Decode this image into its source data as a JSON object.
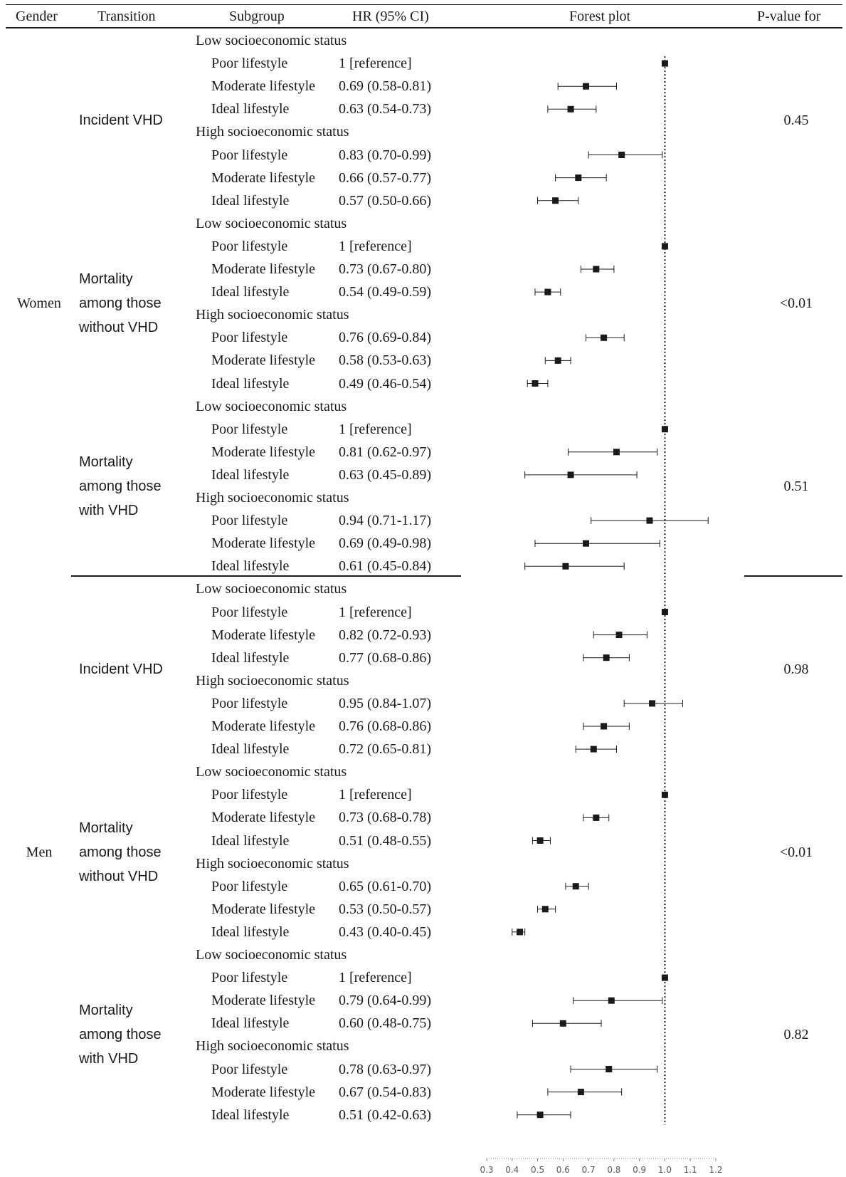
{
  "headers": {
    "gender": "Gender",
    "transition": "Transition",
    "subgroup": "Subgroup",
    "hr": "HR (95% CI)",
    "plot": "Forest plot",
    "pvalue": "P-value for"
  },
  "colors": {
    "ink": "#1a1a1a",
    "axis": "#888888"
  },
  "chart_data": {
    "type": "forest",
    "xaxis": {
      "range": [
        0.3,
        1.2
      ],
      "ticks": [
        "0.3",
        "0.4",
        "0.5",
        "0.6",
        "0.7",
        "0.8",
        "0.9",
        "1.0",
        "1.1",
        "1.2"
      ],
      "reference_line": 1.0,
      "reference_style": "dotted"
    },
    "genders": [
      {
        "label": "Women",
        "transitions": [
          {
            "label_lines": [
              "Incident VHD"
            ],
            "p_value": "0.45",
            "groups": [
              {
                "label": "Low socioeconomic status",
                "rows": [
                  {
                    "subgroup": "Poor lifestyle",
                    "hr_text": "1 [reference]",
                    "hr": 1.0,
                    "lo": 1.0,
                    "hi": 1.0
                  },
                  {
                    "subgroup": "Moderate lifestyle",
                    "hr_text": "0.69 (0.58-0.81)",
                    "hr": 0.69,
                    "lo": 0.58,
                    "hi": 0.81
                  },
                  {
                    "subgroup": "Ideal lifestyle",
                    "hr_text": "0.63 (0.54-0.73)",
                    "hr": 0.63,
                    "lo": 0.54,
                    "hi": 0.73
                  }
                ]
              },
              {
                "label": "High socioeconomic status",
                "rows": [
                  {
                    "subgroup": "Poor lifestyle",
                    "hr_text": "0.83 (0.70-0.99)",
                    "hr": 0.83,
                    "lo": 0.7,
                    "hi": 0.99
                  },
                  {
                    "subgroup": "Moderate lifestyle",
                    "hr_text": "0.66 (0.57-0.77)",
                    "hr": 0.66,
                    "lo": 0.57,
                    "hi": 0.77
                  },
                  {
                    "subgroup": "Ideal lifestyle",
                    "hr_text": "0.57 (0.50-0.66)",
                    "hr": 0.57,
                    "lo": 0.5,
                    "hi": 0.66
                  }
                ]
              }
            ]
          },
          {
            "label_lines": [
              "Mortality",
              "among those",
              "without VHD"
            ],
            "p_value": "<0.01",
            "groups": [
              {
                "label": "Low socioeconomic status",
                "rows": [
                  {
                    "subgroup": "Poor lifestyle",
                    "hr_text": "1 [reference]",
                    "hr": 1.0,
                    "lo": 1.0,
                    "hi": 1.0
                  },
                  {
                    "subgroup": "Moderate lifestyle",
                    "hr_text": "0.73 (0.67-0.80)",
                    "hr": 0.73,
                    "lo": 0.67,
                    "hi": 0.8
                  },
                  {
                    "subgroup": "Ideal lifestyle",
                    "hr_text": "0.54 (0.49-0.59)",
                    "hr": 0.54,
                    "lo": 0.49,
                    "hi": 0.59
                  }
                ]
              },
              {
                "label": "High socioeconomic status",
                "rows": [
                  {
                    "subgroup": "Poor lifestyle",
                    "hr_text": "0.76 (0.69-0.84)",
                    "hr": 0.76,
                    "lo": 0.69,
                    "hi": 0.84
                  },
                  {
                    "subgroup": "Moderate lifestyle",
                    "hr_text": "0.58 (0.53-0.63)",
                    "hr": 0.58,
                    "lo": 0.53,
                    "hi": 0.63
                  },
                  {
                    "subgroup": "Ideal lifestyle",
                    "hr_text": "0.49 (0.46-0.54)",
                    "hr": 0.49,
                    "lo": 0.46,
                    "hi": 0.54
                  }
                ]
              }
            ]
          },
          {
            "label_lines": [
              "Mortality",
              "among those",
              "with VHD"
            ],
            "p_value": "0.51",
            "groups": [
              {
                "label": "Low socioeconomic status",
                "rows": [
                  {
                    "subgroup": "Poor lifestyle",
                    "hr_text": "1 [reference]",
                    "hr": 1.0,
                    "lo": 1.0,
                    "hi": 1.0
                  },
                  {
                    "subgroup": "Moderate lifestyle",
                    "hr_text": "0.81 (0.62-0.97)",
                    "hr": 0.81,
                    "lo": 0.62,
                    "hi": 0.97
                  },
                  {
                    "subgroup": "Ideal lifestyle",
                    "hr_text": "0.63 (0.45-0.89)",
                    "hr": 0.63,
                    "lo": 0.45,
                    "hi": 0.89
                  }
                ]
              },
              {
                "label": "High socioeconomic status",
                "rows": [
                  {
                    "subgroup": "Poor lifestyle",
                    "hr_text": "0.94 (0.71-1.17)",
                    "hr": 0.94,
                    "lo": 0.71,
                    "hi": 1.17
                  },
                  {
                    "subgroup": "Moderate lifestyle",
                    "hr_text": "0.69 (0.49-0.98)",
                    "hr": 0.69,
                    "lo": 0.49,
                    "hi": 0.98
                  },
                  {
                    "subgroup": "Ideal lifestyle",
                    "hr_text": "0.61 (0.45-0.84)",
                    "hr": 0.61,
                    "lo": 0.45,
                    "hi": 0.84
                  }
                ]
              }
            ]
          }
        ]
      },
      {
        "label": "Men",
        "transitions": [
          {
            "label_lines": [
              "Incident VHD"
            ],
            "p_value": "0.98",
            "groups": [
              {
                "label": "Low socioeconomic status",
                "rows": [
                  {
                    "subgroup": "Poor lifestyle",
                    "hr_text": "1 [reference]",
                    "hr": 1.0,
                    "lo": 1.0,
                    "hi": 1.0
                  },
                  {
                    "subgroup": "Moderate lifestyle",
                    "hr_text": "0.82 (0.72-0.93)",
                    "hr": 0.82,
                    "lo": 0.72,
                    "hi": 0.93
                  },
                  {
                    "subgroup": "Ideal lifestyle",
                    "hr_text": "0.77 (0.68-0.86)",
                    "hr": 0.77,
                    "lo": 0.68,
                    "hi": 0.86
                  }
                ]
              },
              {
                "label": "High socioeconomic status",
                "rows": [
                  {
                    "subgroup": "Poor lifestyle",
                    "hr_text": "0.95 (0.84-1.07)",
                    "hr": 0.95,
                    "lo": 0.84,
                    "hi": 1.07
                  },
                  {
                    "subgroup": "Moderate lifestyle",
                    "hr_text": "0.76 (0.68-0.86)",
                    "hr": 0.76,
                    "lo": 0.68,
                    "hi": 0.86
                  },
                  {
                    "subgroup": "Ideal lifestyle",
                    "hr_text": "0.72 (0.65-0.81)",
                    "hr": 0.72,
                    "lo": 0.65,
                    "hi": 0.81
                  }
                ]
              }
            ]
          },
          {
            "label_lines": [
              "Mortality",
              "among those",
              "without VHD"
            ],
            "p_value": "<0.01",
            "groups": [
              {
                "label": "Low socioeconomic status",
                "rows": [
                  {
                    "subgroup": "Poor lifestyle",
                    "hr_text": "1 [reference]",
                    "hr": 1.0,
                    "lo": 1.0,
                    "hi": 1.0
                  },
                  {
                    "subgroup": "Moderate lifestyle",
                    "hr_text": "0.73 (0.68-0.78)",
                    "hr": 0.73,
                    "lo": 0.68,
                    "hi": 0.78
                  },
                  {
                    "subgroup": "Ideal lifestyle",
                    "hr_text": "0.51 (0.48-0.55)",
                    "hr": 0.51,
                    "lo": 0.48,
                    "hi": 0.55
                  }
                ]
              },
              {
                "label": "High socioeconomic status",
                "rows": [
                  {
                    "subgroup": "Poor lifestyle",
                    "hr_text": "0.65 (0.61-0.70)",
                    "hr": 0.65,
                    "lo": 0.61,
                    "hi": 0.7
                  },
                  {
                    "subgroup": "Moderate lifestyle",
                    "hr_text": "0.53 (0.50-0.57)",
                    "hr": 0.53,
                    "lo": 0.5,
                    "hi": 0.57
                  },
                  {
                    "subgroup": "Ideal lifestyle",
                    "hr_text": "0.43 (0.40-0.45)",
                    "hr": 0.43,
                    "lo": 0.4,
                    "hi": 0.45
                  }
                ]
              }
            ]
          },
          {
            "label_lines": [
              "Mortality",
              "among those",
              "with VHD"
            ],
            "p_value": "0.82",
            "groups": [
              {
                "label": "Low socioeconomic status",
                "rows": [
                  {
                    "subgroup": "Poor lifestyle",
                    "hr_text": "1 [reference]",
                    "hr": 1.0,
                    "lo": 1.0,
                    "hi": 1.0
                  },
                  {
                    "subgroup": "Moderate lifestyle",
                    "hr_text": "0.79 (0.64-0.99)",
                    "hr": 0.79,
                    "lo": 0.64,
                    "hi": 0.99
                  },
                  {
                    "subgroup": "Ideal lifestyle",
                    "hr_text": "0.60 (0.48-0.75)",
                    "hr": 0.6,
                    "lo": 0.48,
                    "hi": 0.75
                  }
                ]
              },
              {
                "label": "High socioeconomic status",
                "rows": [
                  {
                    "subgroup": "Poor lifestyle",
                    "hr_text": "0.78 (0.63-0.97)",
                    "hr": 0.78,
                    "lo": 0.63,
                    "hi": 0.97
                  },
                  {
                    "subgroup": "Moderate lifestyle",
                    "hr_text": "0.67 (0.54-0.83)",
                    "hr": 0.67,
                    "lo": 0.54,
                    "hi": 0.83
                  },
                  {
                    "subgroup": "Ideal lifestyle",
                    "hr_text": "0.51 (0.42-0.63)",
                    "hr": 0.51,
                    "lo": 0.42,
                    "hi": 0.63
                  }
                ]
              }
            ]
          }
        ]
      }
    ]
  }
}
